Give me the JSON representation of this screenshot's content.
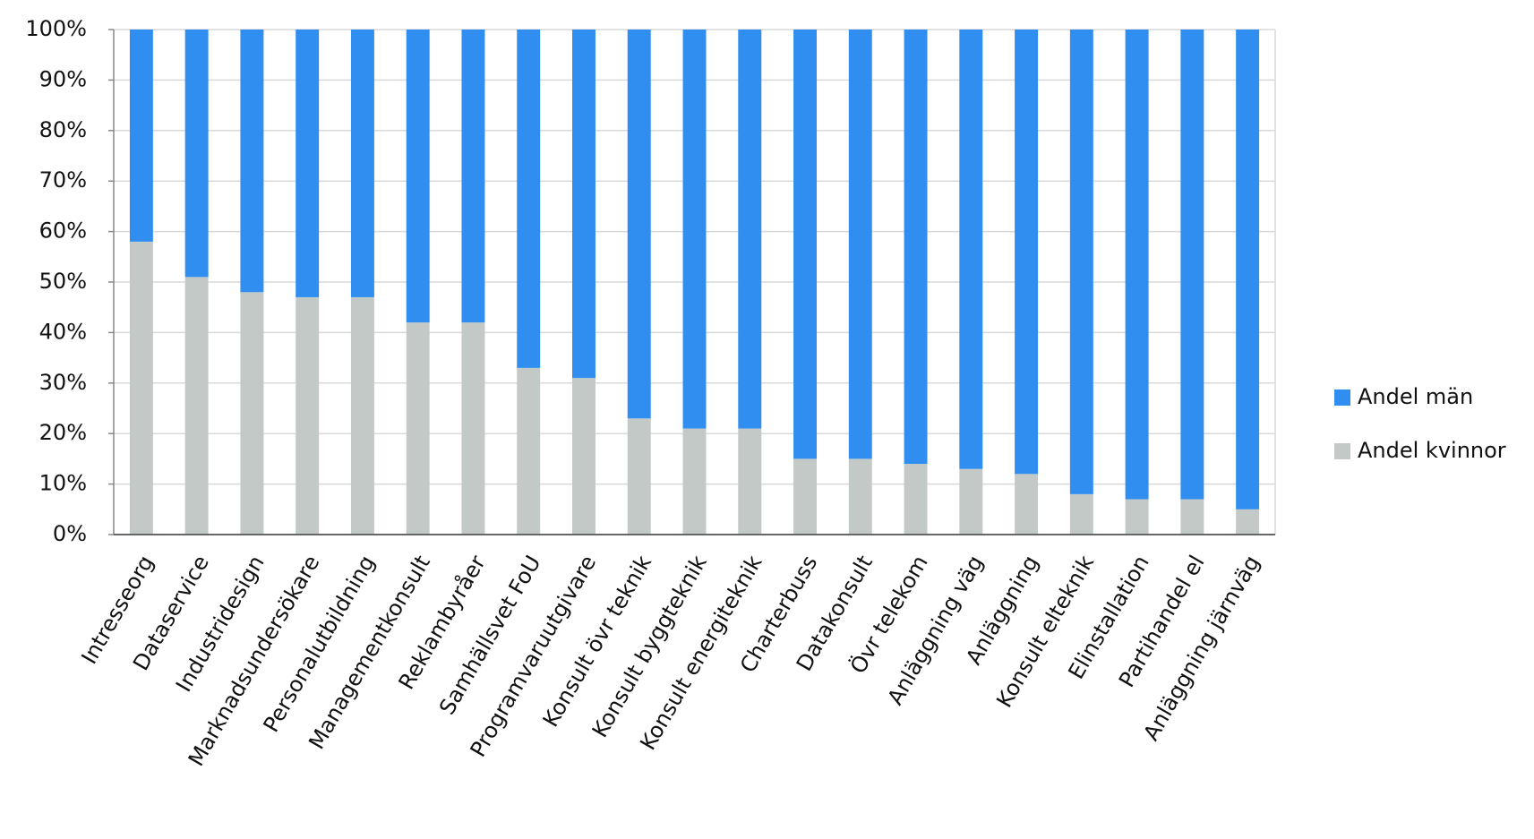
{
  "chart_data": {
    "type": "stacked_bar",
    "categories": [
      "Intresseorg",
      "Dataservice",
      "Industridesign",
      "Marknadsundersökare",
      "Personalutbildning",
      "Managementkonsult",
      "Reklambyråer",
      "Samhällsvet FoU",
      "Programvaruutgivare",
      "Konsult övr teknik",
      "Konsult byggteknik",
      "Konsult energiteknik",
      "Charterbuss",
      "Datakonsult",
      "Övr telekom",
      "Anläggning väg",
      "Anläggning",
      "Konsult elteknik",
      "Elinstallation",
      "Partihandel el",
      "Anläggning järnväg"
    ],
    "series": [
      {
        "name": "Andel män",
        "color": "#2f8ef0",
        "values": [
          42,
          49,
          52,
          53,
          53,
          58,
          58,
          67,
          69,
          77,
          79,
          79,
          85,
          85,
          86,
          87,
          88,
          92,
          93,
          93,
          95
        ]
      },
      {
        "name": "Andel kvinnor",
        "color": "#c3c9c6",
        "values": [
          58,
          51,
          48,
          47,
          47,
          42,
          42,
          33,
          31,
          23,
          21,
          21,
          15,
          15,
          14,
          13,
          12,
          8,
          7,
          7,
          5
        ]
      }
    ],
    "ylim": [
      0,
      100
    ],
    "yticks": [
      {
        "value": 0,
        "label": "0%"
      },
      {
        "value": 10,
        "label": "10%"
      },
      {
        "value": 20,
        "label": "20%"
      },
      {
        "value": 30,
        "label": "30%"
      },
      {
        "value": 40,
        "label": "40%"
      },
      {
        "value": 50,
        "label": "50%"
      },
      {
        "value": 60,
        "label": "60%"
      },
      {
        "value": 70,
        "label": "70%"
      },
      {
        "value": 80,
        "label": "80%"
      },
      {
        "value": 90,
        "label": "90%"
      },
      {
        "value": 100,
        "label": "100%"
      }
    ],
    "grid": true,
    "legend": "right"
  }
}
